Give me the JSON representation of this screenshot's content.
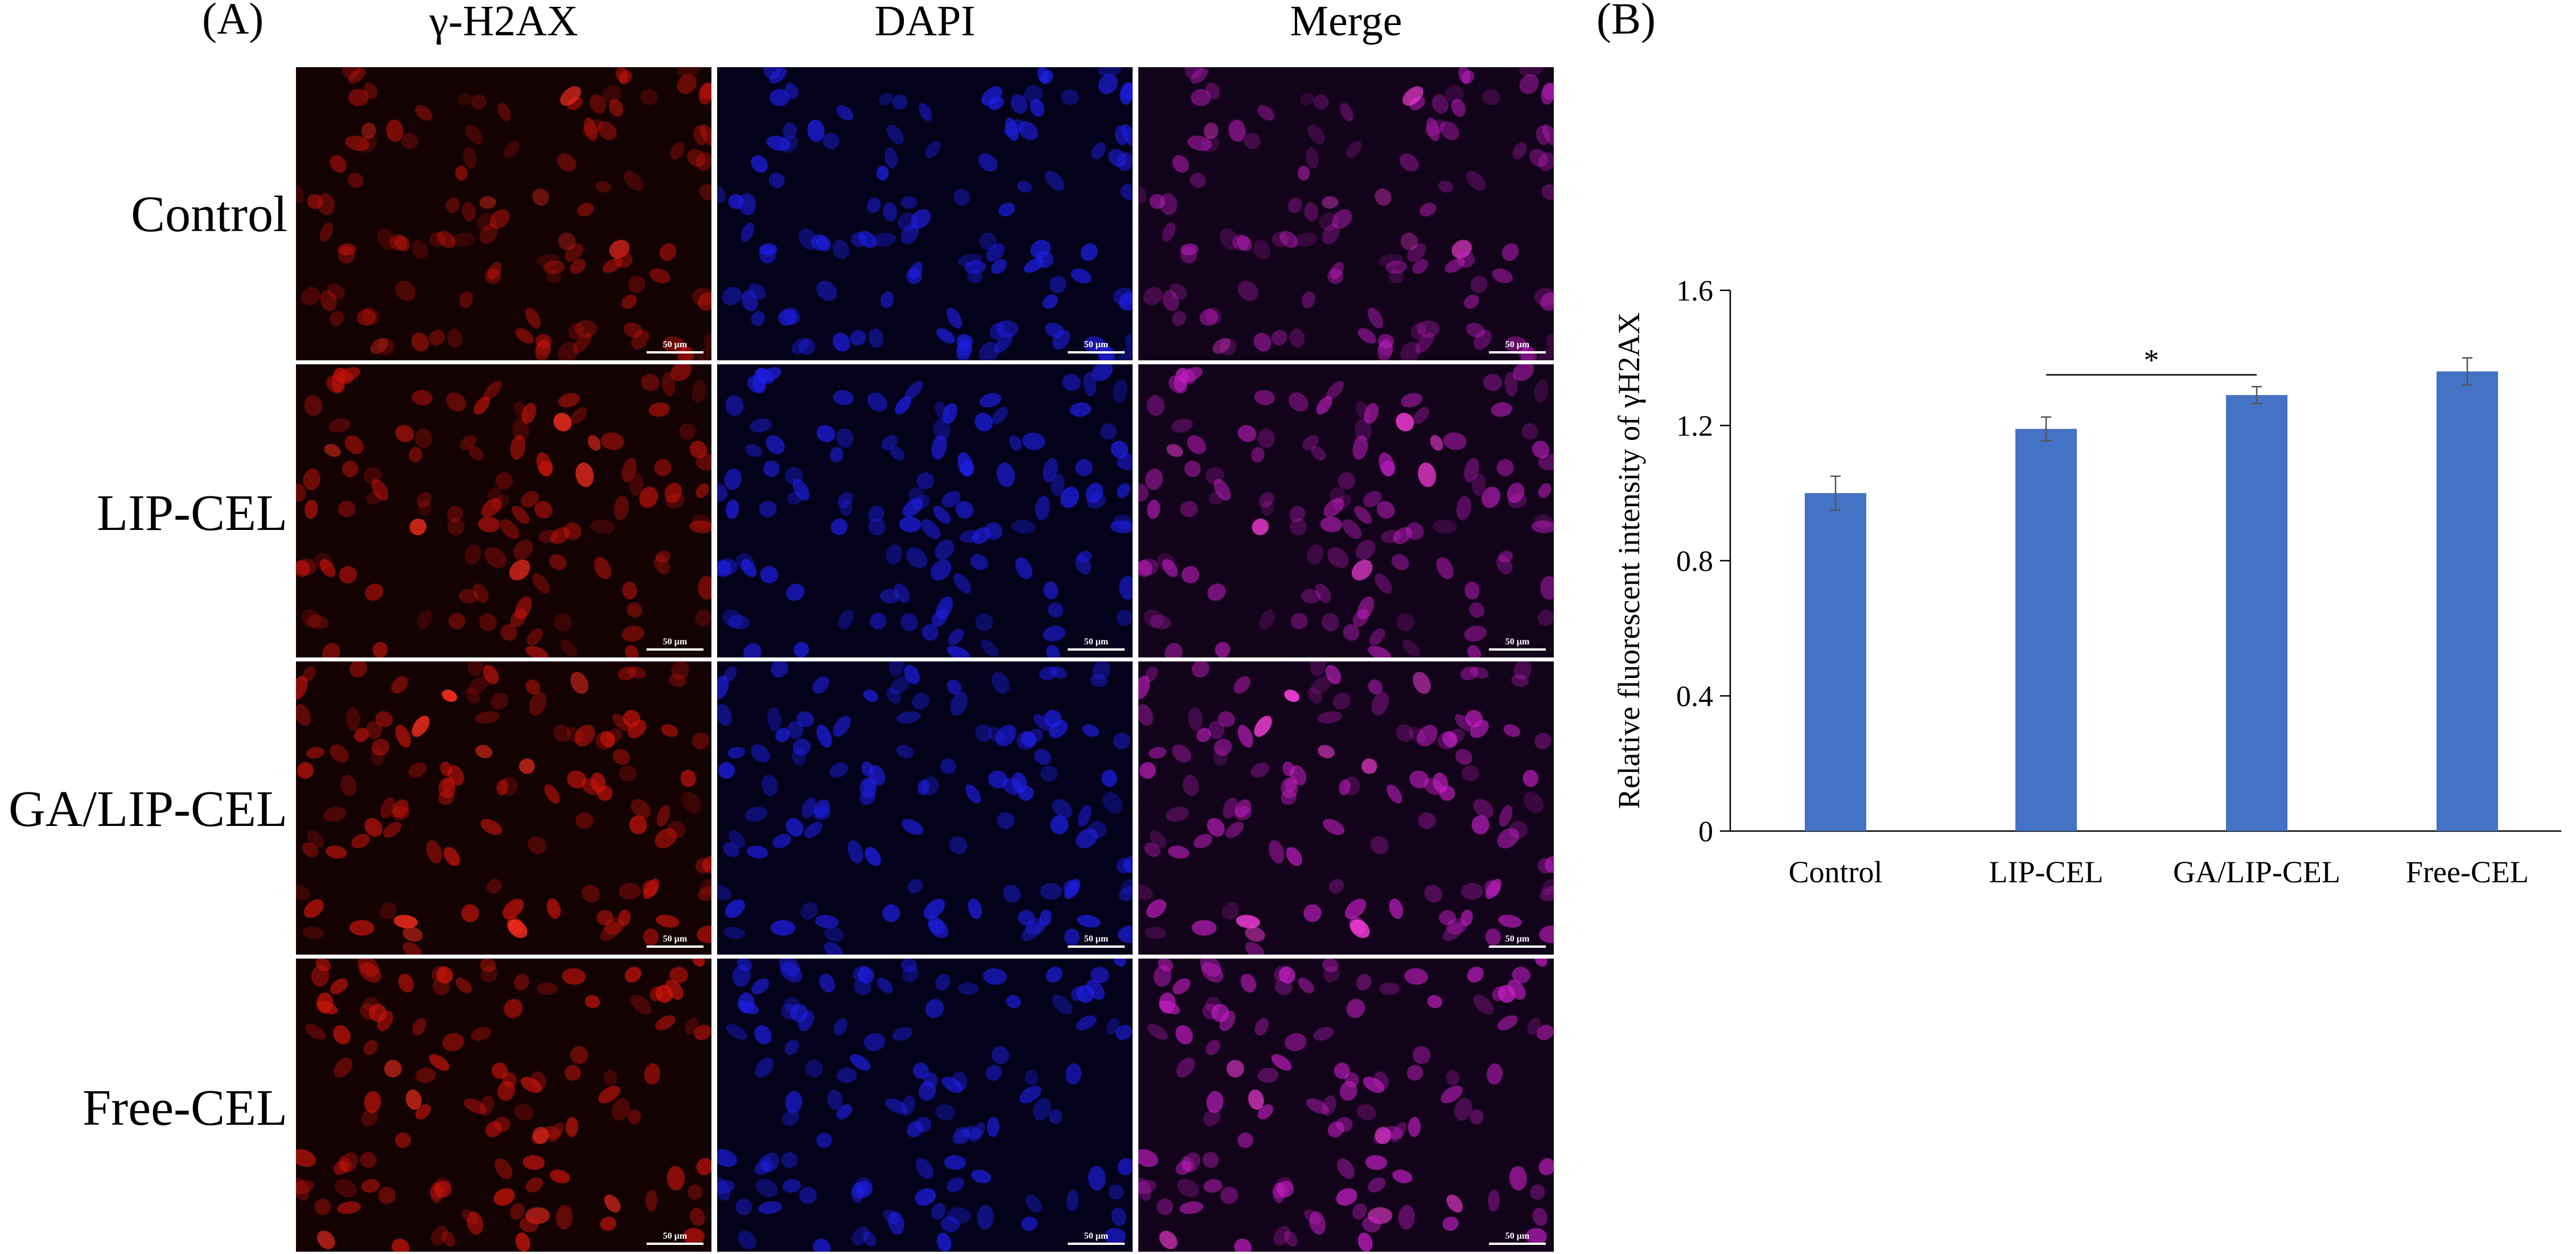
{
  "panels": {
    "a": "(A)",
    "b": "(B)"
  },
  "columns": [
    "γ-H2AX",
    "DAPI",
    "Merge"
  ],
  "rows": [
    "Control",
    "LIP-CEL",
    "GA/LIP-CEL",
    "Free-CEL"
  ],
  "scale_bar": "50 μm",
  "stain_colors": {
    "gamma_h2ax": "#d2140a",
    "dapi": "#1e1ee6",
    "merge": "#c81ec8"
  },
  "row_intensity": [
    0.45,
    0.65,
    0.82,
    1.0
  ],
  "chart_data": {
    "type": "bar",
    "title": "",
    "xlabel": "",
    "ylabel": "Relative fluorescent intensity of γH2AX",
    "categories": [
      "Control",
      "LIP-CEL",
      "GA/LIP-CEL",
      "Free-CEL"
    ],
    "values": [
      1.0,
      1.19,
      1.29,
      1.36
    ],
    "errors": [
      0.05,
      0.035,
      0.025,
      0.04
    ],
    "ylim": [
      0,
      1.6
    ],
    "yticks": [
      "0",
      "0.4",
      "0.8",
      "1.2",
      "1.6"
    ],
    "bar_color": "#4472c4",
    "significance": {
      "from": "LIP-CEL",
      "to": "GA/LIP-CEL",
      "label": "*"
    },
    "grid": false,
    "legend": "none"
  }
}
